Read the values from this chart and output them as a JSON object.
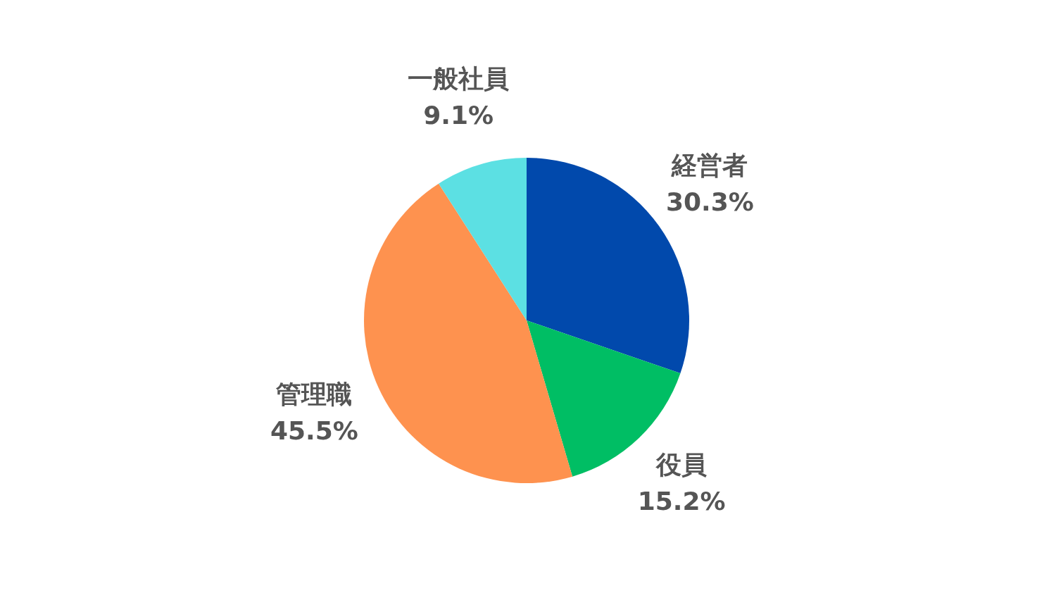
{
  "chart_data": {
    "type": "pie",
    "categories": [
      "経営者",
      "役員",
      "管理職",
      "一般社員"
    ],
    "values": [
      30.3,
      15.2,
      45.5,
      9.1
    ],
    "colors": [
      "#0149ac",
      "#00be64",
      "#fe924f",
      "#5ce0e3"
    ],
    "value_labels": [
      "30.3%",
      "15.2%",
      "45.5%",
      "9.1%"
    ],
    "legend": false
  }
}
